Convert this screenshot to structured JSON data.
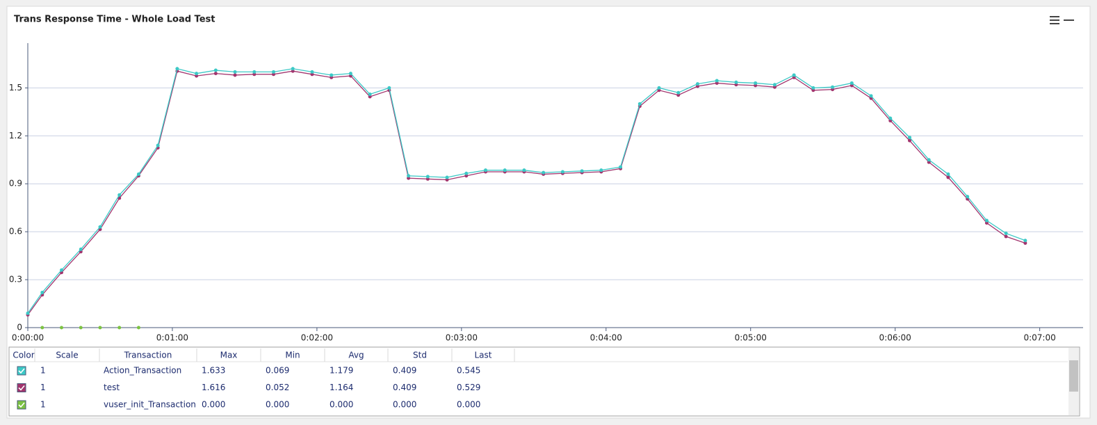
{
  "chart_data": {
    "type": "line",
    "title": "Trans Response Time - Whole Load Test",
    "xlim": [
      0,
      438
    ],
    "xticks": [
      {
        "value": 0,
        "label": "0:00:00"
      },
      {
        "value": 60,
        "label": "0:01:00"
      },
      {
        "value": 120,
        "label": "0:02:00"
      },
      {
        "value": 180,
        "label": "0:03:00"
      },
      {
        "value": 240,
        "label": "0:04:00"
      },
      {
        "value": 300,
        "label": "0:05:00"
      },
      {
        "value": 360,
        "label": "0:06:00"
      },
      {
        "value": 420,
        "label": "0:07:00"
      }
    ],
    "ylim": [
      0,
      1.78
    ],
    "yticks": [
      0,
      0.3,
      0.6,
      0.9,
      1.2,
      1.5
    ],
    "grid": true,
    "x": [
      0,
      6,
      14,
      22,
      30,
      38,
      46,
      54,
      62,
      70,
      78,
      86,
      94,
      102,
      110,
      118,
      126,
      134,
      142,
      150,
      158,
      166,
      174,
      182,
      190,
      198,
      206,
      214,
      222,
      230,
      238,
      246,
      254,
      262,
      270,
      278,
      286,
      294,
      302,
      310,
      318,
      326,
      334,
      342,
      350,
      358,
      366,
      374,
      382,
      390,
      398,
      406,
      414
    ],
    "series": [
      {
        "name": "Action_Transaction",
        "color": "#3cc9c6",
        "values": [
          0.09,
          0.22,
          0.36,
          0.49,
          0.63,
          0.83,
          0.96,
          1.14,
          1.62,
          1.59,
          1.61,
          1.6,
          1.6,
          1.6,
          1.62,
          1.6,
          1.58,
          1.59,
          1.46,
          1.5,
          0.95,
          0.945,
          0.94,
          0.965,
          0.985,
          0.985,
          0.985,
          0.97,
          0.975,
          0.98,
          0.985,
          1.005,
          1.4,
          1.5,
          1.47,
          1.525,
          1.545,
          1.535,
          1.53,
          1.52,
          1.58,
          1.5,
          1.505,
          1.53,
          1.45,
          1.31,
          1.19,
          1.05,
          0.96,
          0.82,
          0.67,
          0.59,
          0.545
        ]
      },
      {
        "name": "test",
        "color": "#a2356e",
        "values": [
          0.08,
          0.205,
          0.345,
          0.475,
          0.615,
          0.81,
          0.95,
          1.125,
          1.605,
          1.575,
          1.59,
          1.58,
          1.585,
          1.585,
          1.605,
          1.585,
          1.565,
          1.575,
          1.445,
          1.485,
          0.935,
          0.93,
          0.925,
          0.95,
          0.975,
          0.975,
          0.975,
          0.96,
          0.965,
          0.97,
          0.975,
          0.995,
          1.385,
          1.485,
          1.455,
          1.51,
          1.53,
          1.52,
          1.515,
          1.505,
          1.565,
          1.485,
          1.49,
          1.515,
          1.435,
          1.295,
          1.17,
          1.035,
          0.94,
          0.805,
          0.655,
          0.57,
          0.529
        ]
      },
      {
        "name": "vuser_init_Transaction",
        "color": "#7cc242",
        "x": [
          6,
          14,
          22,
          30,
          38,
          46
        ],
        "values": [
          0,
          0,
          0,
          0,
          0,
          0
        ]
      }
    ]
  },
  "table": {
    "columns": [
      "Color",
      "Scale",
      "Transaction",
      "Max",
      "Min",
      "Avg",
      "Std",
      "Last"
    ],
    "rows": [
      [
        "1",
        "1.633",
        "0.069",
        "1.179",
        "0.409",
        "0.545"
      ],
      [
        "1",
        "1.616",
        "0.052",
        "1.164",
        "0.409",
        "0.529"
      ],
      [
        "1",
        "0.000",
        "0.000",
        "0.000",
        "0.000",
        "0.000"
      ]
    ]
  }
}
